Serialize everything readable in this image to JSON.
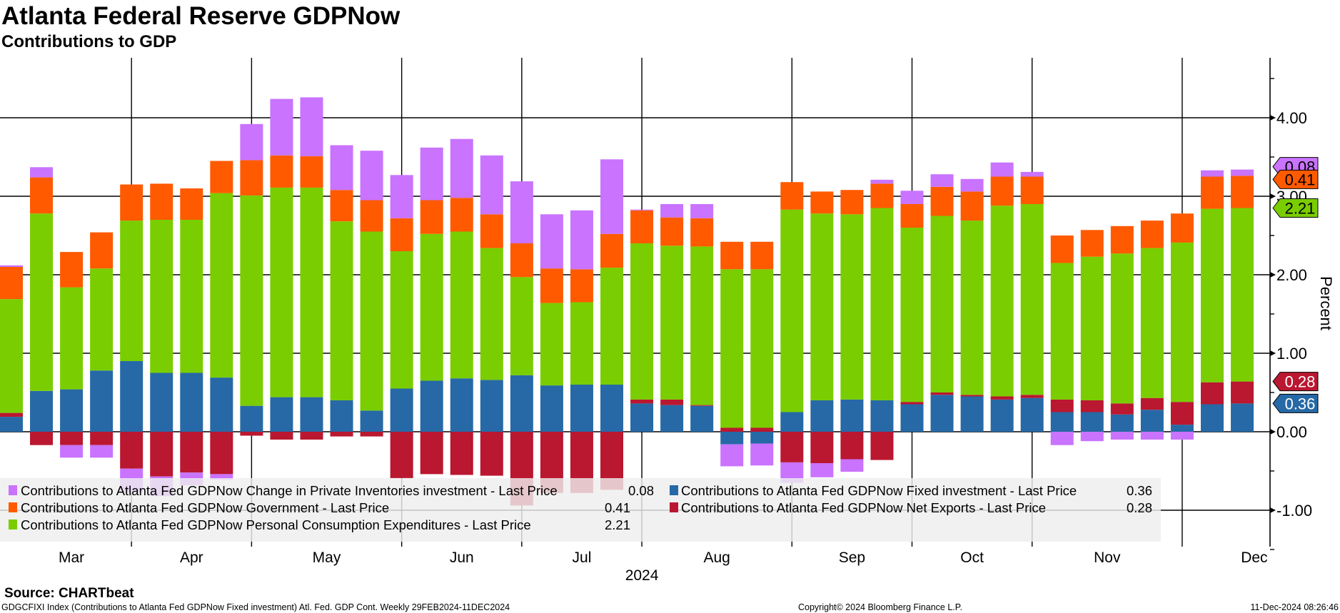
{
  "title": "Atlanta Federal Reserve GDPNow",
  "subtitle": "Contributions to GDP",
  "chart_data": {
    "type": "bar",
    "stacked": true,
    "title": "Atlanta Federal Reserve GDPNow",
    "subtitle": "Contributions to GDP",
    "xlabel": "2024",
    "ylabel": "Percent",
    "frequency": "Weekly",
    "x": [
      1,
      2,
      3,
      4,
      5,
      6,
      7,
      8,
      9,
      10,
      11,
      12,
      13,
      14,
      15,
      16,
      17,
      18,
      19,
      20,
      21,
      22,
      23,
      24,
      25,
      26,
      27,
      28,
      29,
      30,
      31,
      32,
      33,
      34,
      35,
      36,
      37,
      38,
      39,
      40,
      41,
      42
    ],
    "ylim": [
      -1.46,
      4.76
    ],
    "yticks": [
      -1,
      0,
      1,
      2,
      3,
      4
    ],
    "ytick_labels": [
      "-1.00",
      "0.00",
      "1.00",
      "2.00",
      "3.00",
      "4.00"
    ],
    "grid": true,
    "vertical_grid_at_x": [
      5,
      9,
      14,
      18,
      22,
      27,
      31,
      35,
      40
    ],
    "month_ticks": [
      {
        "label": "Mar",
        "x": 3
      },
      {
        "label": "Apr",
        "x": 7
      },
      {
        "label": "May",
        "x": 11.5
      },
      {
        "label": "Jun",
        "x": 16
      },
      {
        "label": "Jul",
        "x": 20
      },
      {
        "label": "Aug",
        "x": 24.5
      },
      {
        "label": "Sep",
        "x": 29
      },
      {
        "label": "Oct",
        "x": 33
      },
      {
        "label": "Nov",
        "x": 37.5
      },
      {
        "label": "Dec",
        "x": 42.4
      }
    ],
    "year_tick": {
      "label": "2024",
      "x": 22
    },
    "series": [
      {
        "key": "fixed",
        "name": "Contributions to Atlanta Fed GDPNow Fixed investment - Last Price",
        "last": "0.36",
        "color": "#2669A6",
        "tag_text_color": "#ffffff",
        "values": [
          0.19,
          0.52,
          0.54,
          0.78,
          0.9,
          0.75,
          0.75,
          0.69,
          0.33,
          0.44,
          0.44,
          0.4,
          0.27,
          0.55,
          0.65,
          0.68,
          0.66,
          0.72,
          0.59,
          0.6,
          0.6,
          0.36,
          0.34,
          0.33,
          -0.16,
          -0.15,
          0.25,
          0.4,
          0.41,
          0.4,
          0.35,
          0.47,
          0.45,
          0.41,
          0.43,
          0.25,
          0.25,
          0.22,
          0.28,
          0.09,
          0.35,
          0.36
        ]
      },
      {
        "key": "netexports",
        "name": "Contributions to Atlanta Fed GDPNow Net Exports - Last Price",
        "last": "0.28",
        "color": "#BA1730",
        "tag_text_color": "#ffffff",
        "values": [
          0.05,
          -0.17,
          -0.17,
          -0.17,
          -0.47,
          -0.57,
          -0.52,
          -0.54,
          -0.05,
          -0.1,
          -0.1,
          -0.06,
          -0.06,
          -0.59,
          -0.54,
          -0.55,
          -0.56,
          -0.94,
          -0.78,
          -0.78,
          -0.74,
          0.05,
          0.07,
          0.01,
          0.05,
          0.05,
          -0.39,
          -0.4,
          -0.35,
          -0.36,
          0.03,
          0.03,
          0.02,
          0.04,
          0.04,
          0.16,
          0.15,
          0.14,
          0.15,
          0.29,
          0.28,
          0.28
        ]
      },
      {
        "key": "pce",
        "name": "Contributions to Atlanta Fed GDPNow Personal Consumption Expenditures - Last Price",
        "last": "2.21",
        "color": "#7ACD00",
        "tag_text_color": "#000000",
        "values": [
          1.45,
          2.26,
          1.3,
          1.3,
          1.79,
          1.95,
          1.95,
          2.35,
          2.68,
          2.67,
          2.67,
          2.28,
          2.28,
          1.75,
          1.87,
          1.87,
          1.68,
          1.25,
          1.05,
          1.05,
          1.49,
          1.99,
          1.96,
          2.02,
          2.02,
          2.02,
          2.58,
          2.38,
          2.36,
          2.45,
          2.22,
          2.25,
          2.22,
          2.43,
          2.43,
          1.74,
          1.83,
          1.91,
          1.91,
          2.03,
          2.21,
          2.21
        ]
      },
      {
        "key": "government",
        "name": "Contributions to Atlanta Fed GDPNow Government - Last Price",
        "last": "0.41",
        "color": "#FF5A00",
        "tag_text_color": "#000000",
        "values": [
          0.41,
          0.46,
          0.45,
          0.46,
          0.46,
          0.46,
          0.4,
          0.41,
          0.45,
          0.41,
          0.4,
          0.4,
          0.4,
          0.42,
          0.43,
          0.43,
          0.43,
          0.43,
          0.44,
          0.42,
          0.43,
          0.42,
          0.36,
          0.36,
          0.35,
          0.35,
          0.35,
          0.28,
          0.31,
          0.31,
          0.3,
          0.37,
          0.37,
          0.37,
          0.35,
          0.35,
          0.34,
          0.35,
          0.35,
          0.37,
          0.41,
          0.41
        ]
      },
      {
        "key": "inventories",
        "name": "Contributions to Atlanta Fed GDPNow Change in Private Inventories investment - Last Price",
        "last": "0.08",
        "color": "#C973FF",
        "tag_text_color": "#000000",
        "values": [
          0.02,
          0.13,
          -0.16,
          -0.16,
          -0.3,
          -0.25,
          -0.16,
          -0.07,
          0.46,
          0.72,
          0.75,
          0.57,
          0.63,
          0.55,
          0.67,
          0.75,
          0.75,
          0.79,
          0.69,
          0.75,
          0.95,
          0.01,
          0.17,
          0.18,
          -0.28,
          -0.28,
          -0.26,
          -0.18,
          -0.16,
          0.05,
          0.17,
          0.16,
          0.16,
          0.18,
          0.06,
          -0.17,
          -0.12,
          -0.1,
          -0.1,
          -0.1,
          0.08,
          0.08
        ]
      }
    ],
    "legend": {
      "position": "bottom-left",
      "left_column": [
        "inventories",
        "government",
        "pce"
      ],
      "right_column": [
        "fixed",
        "netexports"
      ]
    }
  },
  "footer": {
    "source": "Source: CHARTbeat",
    "description": "GDGCFIXI Index (Contributions to Atlanta Fed GDPNow Fixed investment) Atl. Fed. GDP Cont.  Weekly 29FEB2024-11DEC2024",
    "copyright": "Copyright© 2024 Bloomberg Finance L.P.",
    "timestamp": "11-Dec-2024 08:26:46"
  }
}
